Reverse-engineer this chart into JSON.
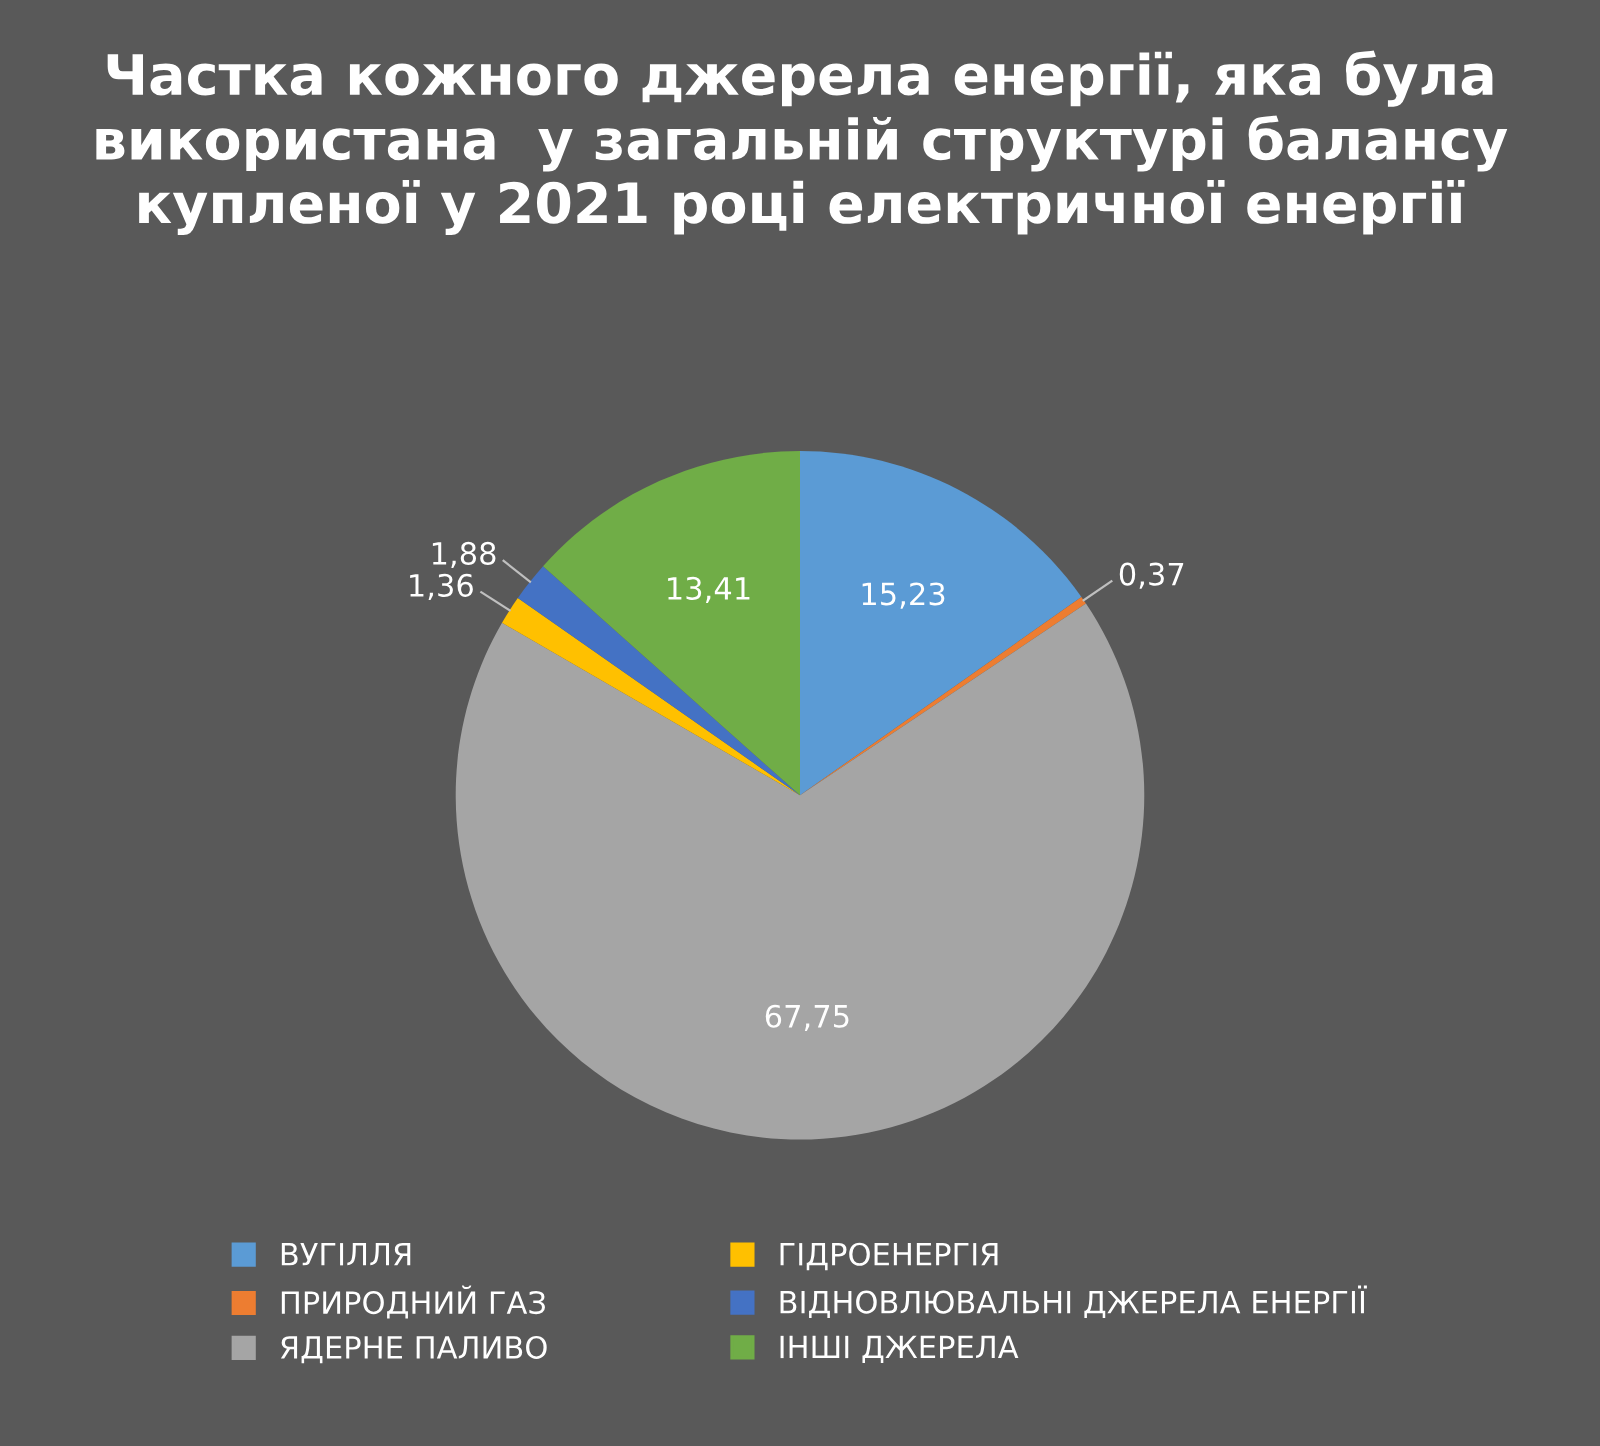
{
  "chart_data": {
    "type": "pie",
    "title": "Частка кожного джерела енергії, яка була використана  у загальній структурі балансу купленої у 2021 році електричної енергії",
    "categories": [
      "ВУГІЛЛЯ",
      "ПРИРОДНИЙ ГАЗ",
      "ЯДЕРНЕ ПАЛИВО",
      "ГІДРОЕНЕРГІЯ",
      "ВІДНОВЛЮВАЛЬНІ ДЖЕРЕЛА ЕНЕРГІЇ",
      "ІНШІ ДЖЕРЕЛА"
    ],
    "values": [
      15.23,
      0.37,
      67.75,
      1.36,
      1.88,
      13.41
    ],
    "value_labels": [
      "15,23",
      "0,37",
      "67,75",
      "1,36",
      "1,88",
      "13,41"
    ],
    "colors": [
      "#5b9bd5",
      "#ed7d31",
      "#a5a5a5",
      "#ffc000",
      "#4472c4",
      "#70ad47"
    ],
    "legend": "bottom"
  }
}
